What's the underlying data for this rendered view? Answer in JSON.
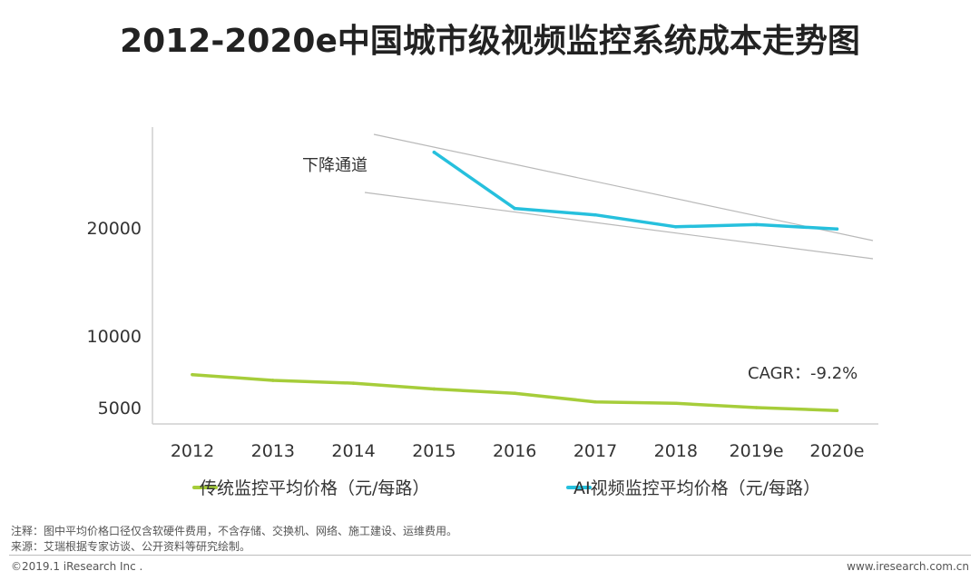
{
  "title": "2012-2020e中国城市级视频监控系统成本走势图",
  "chart_data": {
    "type": "line",
    "categories": [
      "2012",
      "2013",
      "2014",
      "2015",
      "2016",
      "2017",
      "2018",
      "2019e",
      "2020e"
    ],
    "y_ticks": [
      20000,
      10000,
      5000
    ],
    "series": [
      {
        "name": "传统监控平均价格（元/每路）",
        "color": "#a6cd3a",
        "values": [
          7300,
          6900,
          6700,
          6300,
          6000,
          5400,
          5300,
          5000,
          4800
        ]
      },
      {
        "name": "AI视频监控平均价格（元/每路）",
        "color": "#26c0dd",
        "values": [
          null,
          null,
          null,
          27000,
          21800,
          21200,
          20100,
          20300,
          19900
        ]
      }
    ],
    "annotations": {
      "channel_label": "下降通道",
      "cagr": "CAGR：-9.2%"
    }
  },
  "notes": {
    "note1": "注释：图中平均价格口径仅含软硬件费用，不含存储、交换机、网络、施工建设、运维费用。",
    "note2": "来源：艾瑞根据专家访谈、公开资料等研究绘制。"
  },
  "footer": {
    "copyright": "©2019.1 iResearch Inc .",
    "site": "www.iresearch.com.cn"
  }
}
